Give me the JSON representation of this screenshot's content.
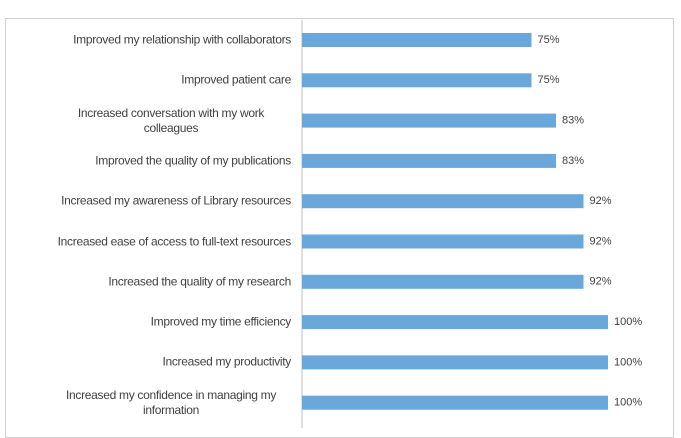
{
  "chart_data": {
    "type": "bar",
    "orientation": "horizontal",
    "categories": [
      "Improved my relationship with collaborators",
      "Improved patient care",
      "Increased conversation with my work colleagues",
      "Improved the quality of my publications",
      "Increased my awareness of Library resources",
      "Increased ease of access to full-text resources",
      "Increased the quality of my research",
      "Improved my time efficiency",
      "Increased my productivity",
      "Increased my confidence in managing my information"
    ],
    "values": [
      75,
      75,
      83,
      83,
      92,
      92,
      92,
      100,
      100,
      100
    ],
    "value_labels": [
      "75%",
      "75%",
      "83%",
      "83%",
      "92%",
      "92%",
      "92%",
      "100%",
      "100%",
      "100%"
    ],
    "color": "#6aa8dc",
    "xlim": [
      0,
      100
    ]
  }
}
